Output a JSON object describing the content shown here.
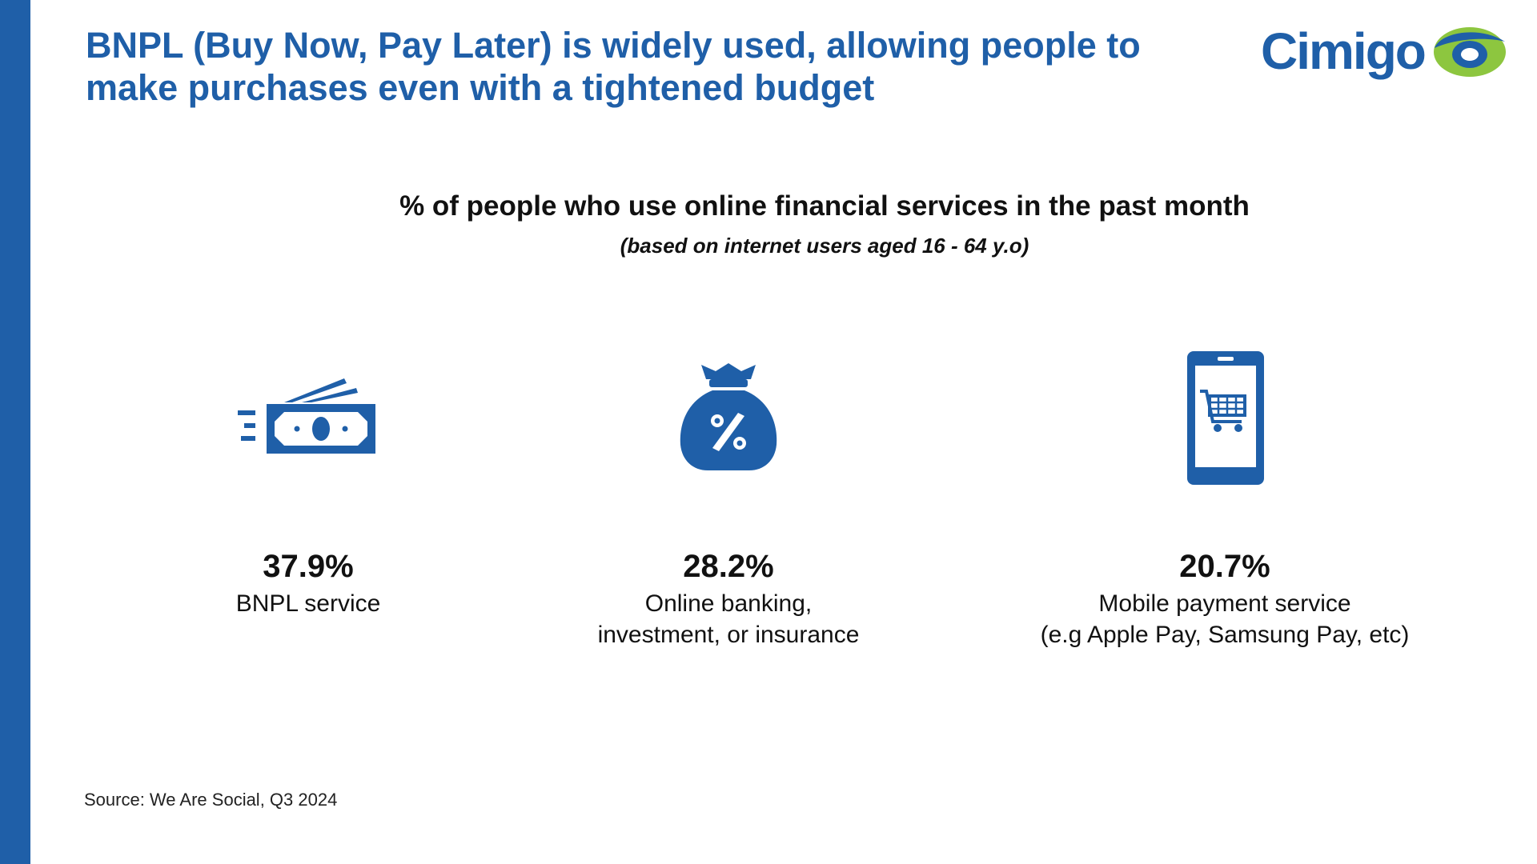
{
  "header": {
    "title_line1": "BNPL (Buy Now, Pay Later) is widely used, allowing people to",
    "title_line2": "make purchases even with a tightened budget",
    "logo_text": "Cimigo"
  },
  "colors": {
    "brand_blue": "#1f5fa8",
    "logo_green": "#8dc63f"
  },
  "chart_data": {
    "type": "table",
    "title": "% of people who use online financial services in the past month",
    "subtitle": "(based on internet users aged 16 - 64 y.o)",
    "items": [
      {
        "value": 37.9,
        "display": "37.9%",
        "label_line1": "BNPL service",
        "label_line2": "",
        "icon": "cash-icon"
      },
      {
        "value": 28.2,
        "display": "28.2%",
        "label_line1": "Online banking,",
        "label_line2": "investment, or insurance",
        "icon": "money-bag-percent-icon"
      },
      {
        "value": 20.7,
        "display": "20.7%",
        "label_line1": "Mobile payment service",
        "label_line2": "(e.g Apple Pay, Samsung Pay, etc)",
        "icon": "mobile-cart-icon"
      }
    ]
  },
  "footer": {
    "source": "Source: We Are Social, Q3 2024"
  }
}
